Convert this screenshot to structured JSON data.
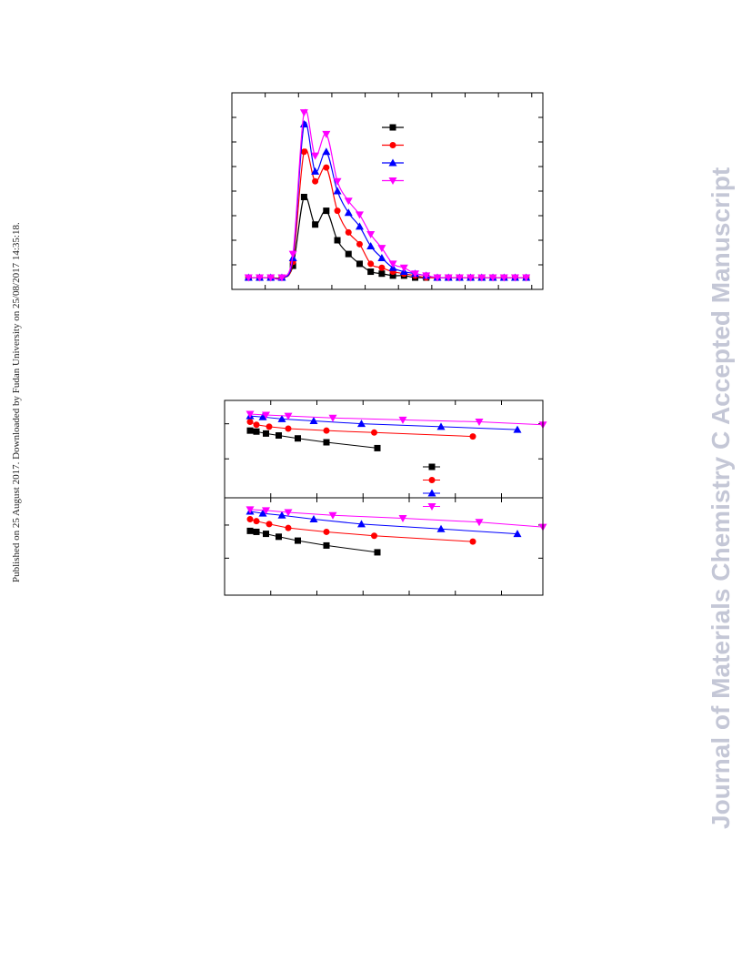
{
  "side_note": "Published on 25 August 2017. Downloaded by Fudan University on 25/08/2017 14:35:18.",
  "watermark": "Journal of Materials Chemistry C Accepted Manuscript",
  "colors": {
    "s1": "#000000",
    "s2": "#ff0000",
    "s3": "#0000ff",
    "s4": "#ff00ff"
  },
  "chart_data": [
    {
      "type": "line",
      "title": "",
      "xlabel": "",
      "ylabel": "",
      "xlim": [
        0,
        28
      ],
      "ylim": [
        0,
        100
      ],
      "x": [
        1.5,
        2.5,
        3.5,
        4.5,
        5.5,
        6.5,
        7.5,
        8.5,
        9.5,
        10.5,
        11.5,
        12.5,
        13.5,
        14.5,
        15.5,
        16.5,
        17.5,
        18.5,
        19.5,
        20.5,
        21.5,
        22.5,
        23.5,
        24.5,
        25.5,
        26.5
      ],
      "series": [
        {
          "marker": "square",
          "color": "#000000",
          "values": [
            6,
            6,
            6,
            6,
            12,
            47,
            33,
            40,
            25,
            18,
            13,
            9,
            8,
            7,
            7,
            6,
            6,
            6,
            6,
            6,
            6,
            6,
            6,
            6,
            6,
            6
          ]
        },
        {
          "marker": "circle",
          "color": "#ff0000",
          "values": [
            6,
            6,
            6,
            6,
            14,
            70,
            55,
            62,
            40,
            29,
            23,
            13,
            11,
            9,
            8,
            7,
            6,
            6,
            6,
            6,
            6,
            6,
            6,
            6,
            6,
            6
          ]
        },
        {
          "marker": "triangle-up",
          "color": "#0000ff",
          "values": [
            6,
            6,
            6,
            6,
            16,
            84,
            60,
            70,
            50,
            39,
            32,
            22,
            16,
            11,
            9,
            8,
            7,
            6,
            6,
            6,
            6,
            6,
            6,
            6,
            6,
            6
          ]
        },
        {
          "marker": "triangle-down",
          "color": "#ff00ff",
          "values": [
            6,
            6,
            6,
            6,
            18,
            90,
            68,
            79,
            55,
            45,
            38,
            28,
            21,
            13,
            11,
            8,
            7,
            6,
            6,
            6,
            6,
            6,
            6,
            6,
            6,
            6
          ]
        }
      ]
    },
    {
      "type": "scatter",
      "title": "",
      "xlabel": "",
      "ylabel": "",
      "scale_y": "log",
      "xlim": [
        0,
        100
      ],
      "ylim": [
        0,
        10
      ],
      "series": [
        {
          "marker": "square",
          "color": "#000000",
          "x": [
            8,
            10,
            13,
            17,
            23,
            32,
            48
          ],
          "y": [
            6.9,
            6.8,
            6.6,
            6.4,
            6.1,
            5.7,
            5.1
          ]
        },
        {
          "marker": "circle",
          "color": "#ff0000",
          "x": [
            8,
            10,
            14,
            20,
            32,
            47,
            78
          ],
          "y": [
            7.8,
            7.5,
            7.3,
            7.1,
            6.9,
            6.7,
            6.3
          ]
        },
        {
          "marker": "triangle-up",
          "color": "#0000ff",
          "x": [
            8,
            12,
            18,
            28,
            43,
            68,
            92
          ],
          "y": [
            8.4,
            8.3,
            8.1,
            7.9,
            7.6,
            7.3,
            7.0
          ]
        },
        {
          "marker": "triangle-down",
          "color": "#ff00ff",
          "x": [
            8,
            13,
            20,
            34,
            56,
            80,
            100
          ],
          "y": [
            8.6,
            8.5,
            8.4,
            8.2,
            8.0,
            7.8,
            7.5
          ]
        }
      ]
    },
    {
      "type": "scatter",
      "title": "",
      "xlabel": "",
      "ylabel": "",
      "scale_y": "log",
      "xlim": [
        0,
        100
      ],
      "ylim": [
        0,
        10
      ],
      "series": [
        {
          "marker": "square",
          "color": "#000000",
          "x": [
            8,
            10,
            13,
            17,
            23,
            32,
            48
          ],
          "y": [
            6.6,
            6.5,
            6.3,
            6.0,
            5.6,
            5.1,
            4.4
          ]
        },
        {
          "marker": "circle",
          "color": "#ff0000",
          "x": [
            8,
            10,
            14,
            20,
            32,
            47,
            78
          ],
          "y": [
            7.8,
            7.6,
            7.3,
            6.9,
            6.5,
            6.1,
            5.5
          ]
        },
        {
          "marker": "triangle-up",
          "color": "#0000ff",
          "x": [
            8,
            12,
            18,
            28,
            43,
            68,
            92
          ],
          "y": [
            8.6,
            8.4,
            8.2,
            7.8,
            7.3,
            6.8,
            6.3
          ]
        },
        {
          "marker": "triangle-down",
          "color": "#ff00ff",
          "x": [
            8,
            13,
            20,
            34,
            56,
            80,
            100
          ],
          "y": [
            8.8,
            8.7,
            8.5,
            8.2,
            7.9,
            7.5,
            7.0
          ]
        }
      ]
    }
  ]
}
